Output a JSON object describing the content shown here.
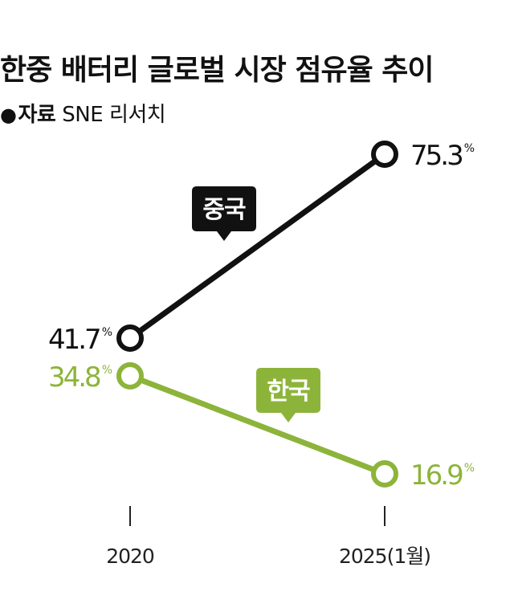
{
  "title": "한중 배터리 글로벌 시장 점유율 추이",
  "source": {
    "bullet": "●",
    "label": "자료",
    "name": "SNE 리서치"
  },
  "colors": {
    "china": "#111111",
    "korea": "#8db43a",
    "background": "#ffffff"
  },
  "chart_data": {
    "type": "line",
    "categories": [
      "2020",
      "2025(1월)"
    ],
    "series": [
      {
        "name": "중국",
        "values": [
          41.7,
          75.3
        ],
        "labels": [
          "41.7",
          "75.3"
        ],
        "unit": "%"
      },
      {
        "name": "한국",
        "values": [
          34.8,
          16.9
        ],
        "labels": [
          "34.8",
          "16.9"
        ],
        "unit": "%"
      }
    ],
    "ylim": [
      0,
      100
    ],
    "grid": false
  }
}
